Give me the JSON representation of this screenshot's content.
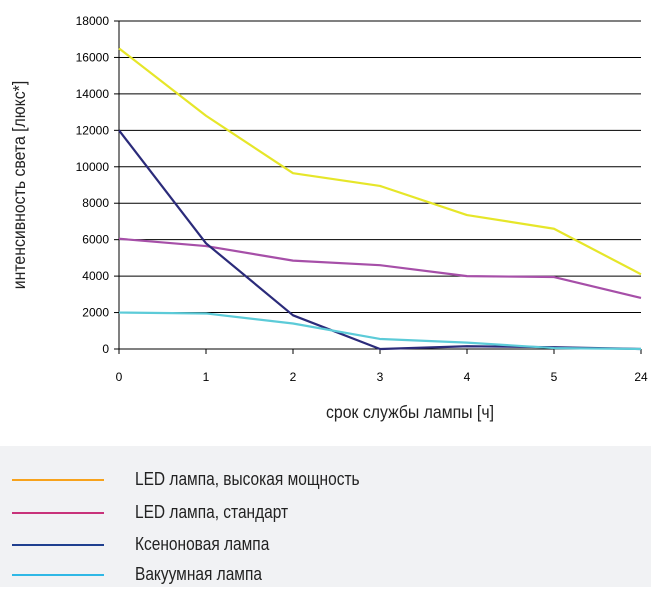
{
  "chart_data": {
    "type": "line",
    "categories": [
      "0",
      "1",
      "2",
      "3",
      "4",
      "5",
      "24"
    ],
    "xlabel": "срок службы лампы [ч]",
    "ylabel": "интенсивность света [люкс*]",
    "ylim": [
      0,
      18000
    ],
    "yticks": [
      "0",
      "2000",
      "4000",
      "6000",
      "8000",
      "10000",
      "12000",
      "14000",
      "16000",
      "18000"
    ],
    "grid": true,
    "legend_position": "bottom",
    "series": [
      {
        "name": "LED лампа, высокая мощность",
        "color": "#e6e629",
        "values": [
          16500,
          12800,
          9650,
          8950,
          7350,
          6600,
          4100
        ]
      },
      {
        "name": "LED лампа, стандарт",
        "color": "#a64fa8",
        "values": [
          6050,
          5650,
          4850,
          4600,
          4000,
          3950,
          2800
        ]
      },
      {
        "name": "Ксеноновая лампа",
        "color": "#2b2b7a",
        "values": [
          12000,
          5800,
          1850,
          0,
          150,
          100,
          0
        ]
      },
      {
        "name": "Вакуумная лампа",
        "color": "#5ccbd8",
        "values": [
          2000,
          1950,
          1400,
          550,
          350,
          50,
          0
        ]
      }
    ]
  },
  "legend": {
    "items": [
      {
        "label": "LED лампа, высокая мощность",
        "color": "#f7a21b"
      },
      {
        "label": "LED лампа, стандарт",
        "color": "#c8327a"
      },
      {
        "label": "Ксеноновая лампа",
        "color": "#1f3f8f"
      },
      {
        "label": "Вакуумная лампа",
        "color": "#2fb8e6"
      }
    ]
  }
}
